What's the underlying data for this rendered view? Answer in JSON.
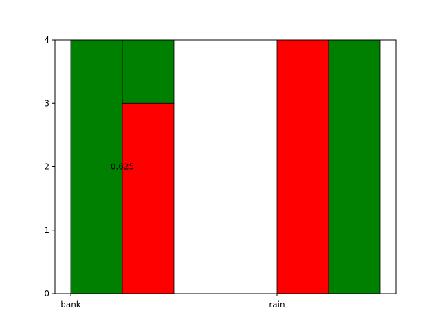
{
  "chart_data": {
    "type": "bar",
    "title": "",
    "xlabel": "",
    "ylabel": "",
    "ylim": [
      0,
      4
    ],
    "yticks": [
      "0",
      "1",
      "2",
      "3",
      "4"
    ],
    "grid": false,
    "legend": "none",
    "colors": {
      "green": "#008000",
      "red": "#ff0000",
      "edge": "#000000"
    },
    "categories": [
      "bank",
      "rain"
    ],
    "bars": [
      {
        "group": "bank",
        "slot": 0,
        "segments": [
          {
            "bottom": 0,
            "value": 4,
            "color": "green"
          }
        ]
      },
      {
        "group": "bank",
        "slot": 1,
        "segments": [
          {
            "bottom": 0,
            "value": 3,
            "color": "red"
          },
          {
            "bottom": 3,
            "value": 1,
            "color": "green"
          }
        ]
      },
      {
        "group": "rain",
        "slot": 0,
        "segments": [
          {
            "bottom": 0,
            "value": 4,
            "color": "red"
          }
        ]
      },
      {
        "group": "rain",
        "slot": 1,
        "segments": [
          {
            "bottom": 0,
            "value": 4,
            "color": "green"
          }
        ]
      }
    ],
    "annotations": [
      {
        "text": "0.625",
        "group": "bank",
        "y": 2
      }
    ]
  }
}
